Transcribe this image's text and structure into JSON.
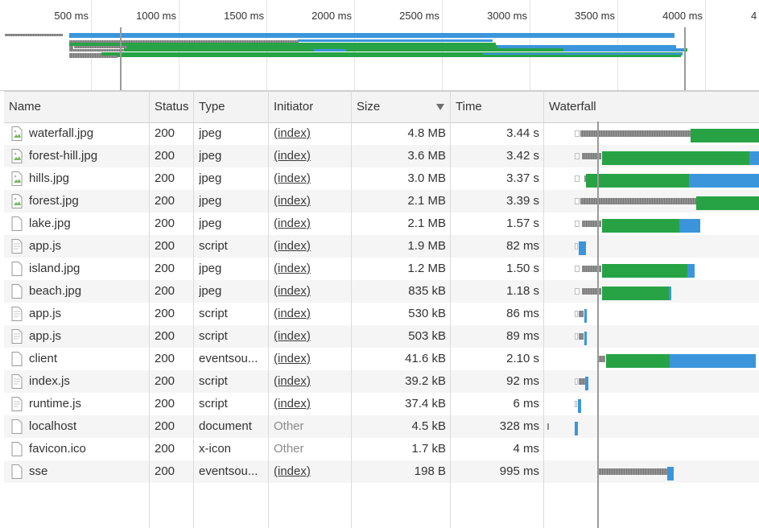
{
  "overview": {
    "ticks": [
      "500 ms",
      "1000 ms",
      "1500 ms",
      "2000 ms",
      "2500 ms",
      "3000 ms",
      "3500 ms",
      "4000 ms",
      "4"
    ]
  },
  "columns": {
    "name": "Name",
    "status": "Status",
    "type": "Type",
    "initiator": "Initiator",
    "size": "Size",
    "time": "Time",
    "waterfall": "Waterfall"
  },
  "sort": {
    "column": "Size",
    "direction": "descending"
  },
  "colors": {
    "waiting": "#27a345",
    "download": "#3b95db",
    "stalled": "#8a8a8a",
    "marker": "#9a9a9a",
    "alt_row": "#f5f5f5"
  },
  "requests": [
    {
      "name": "waterfall.jpg",
      "status": "200",
      "type": "jpeg",
      "initiator": "(index)",
      "size": "4.8 MB",
      "time": "3.44 s",
      "icon": "image-icon"
    },
    {
      "name": "forest-hill.jpg",
      "status": "200",
      "type": "jpeg",
      "initiator": "(index)",
      "size": "3.6 MB",
      "time": "3.42 s",
      "icon": "image-icon"
    },
    {
      "name": "hills.jpg",
      "status": "200",
      "type": "jpeg",
      "initiator": "(index)",
      "size": "3.0 MB",
      "time": "3.37 s",
      "icon": "image-icon"
    },
    {
      "name": "forest.jpg",
      "status": "200",
      "type": "jpeg",
      "initiator": "(index)",
      "size": "2.1 MB",
      "time": "3.39 s",
      "icon": "image-icon"
    },
    {
      "name": "lake.jpg",
      "status": "200",
      "type": "jpeg",
      "initiator": "(index)",
      "size": "2.1 MB",
      "time": "1.57 s",
      "icon": "file-icon"
    },
    {
      "name": "app.js",
      "status": "200",
      "type": "script",
      "initiator": "(index)",
      "size": "1.9 MB",
      "time": "82 ms",
      "icon": "script-icon"
    },
    {
      "name": "island.jpg",
      "status": "200",
      "type": "jpeg",
      "initiator": "(index)",
      "size": "1.2 MB",
      "time": "1.50 s",
      "icon": "file-icon"
    },
    {
      "name": "beach.jpg",
      "status": "200",
      "type": "jpeg",
      "initiator": "(index)",
      "size": "835 kB",
      "time": "1.18 s",
      "icon": "file-icon"
    },
    {
      "name": "app.js",
      "status": "200",
      "type": "script",
      "initiator": "(index)",
      "size": "530 kB",
      "time": "86 ms",
      "icon": "script-icon"
    },
    {
      "name": "app.js",
      "status": "200",
      "type": "script",
      "initiator": "(index)",
      "size": "503 kB",
      "time": "89 ms",
      "icon": "script-icon"
    },
    {
      "name": "client",
      "status": "200",
      "type": "eventsou...",
      "initiator": "(index)",
      "size": "41.6 kB",
      "time": "2.10 s",
      "icon": "file-icon"
    },
    {
      "name": "index.js",
      "status": "200",
      "type": "script",
      "initiator": "(index)",
      "size": "39.2 kB",
      "time": "92 ms",
      "icon": "script-icon"
    },
    {
      "name": "runtime.js",
      "status": "200",
      "type": "script",
      "initiator": "(index)",
      "size": "37.4 kB",
      "time": "6 ms",
      "icon": "script-icon"
    },
    {
      "name": "localhost",
      "status": "200",
      "type": "document",
      "initiator": "Other",
      "size": "4.5 kB",
      "time": "328 ms",
      "icon": "file-icon"
    },
    {
      "name": "favicon.ico",
      "status": "200",
      "type": "x-icon",
      "initiator": "Other",
      "size": "1.7 kB",
      "time": "4 ms",
      "icon": "file-icon"
    },
    {
      "name": "sse",
      "status": "200",
      "type": "eventsou...",
      "initiator": "(index)",
      "size": "198 B",
      "time": "995 ms",
      "icon": "file-icon"
    }
  ]
}
